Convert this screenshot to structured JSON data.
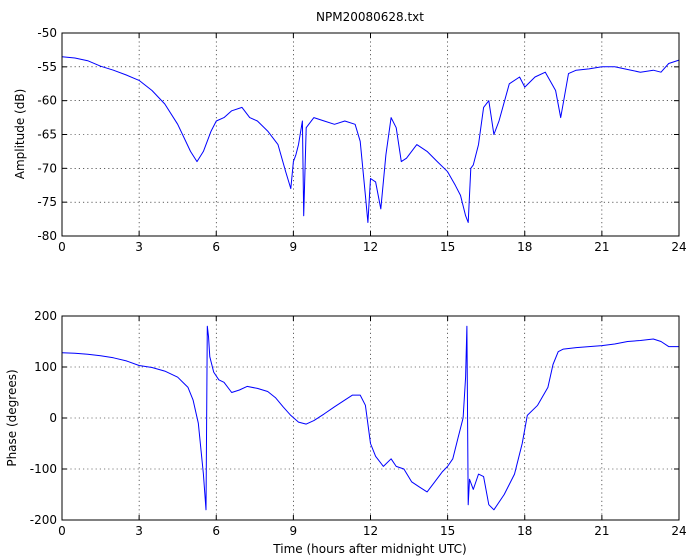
{
  "chart_data": [
    {
      "type": "line",
      "title": "NPM20080628.txt",
      "xlabel": "",
      "ylabel": "Amplitude (dB)",
      "xlim": [
        0,
        24
      ],
      "ylim": [
        -80,
        -50
      ],
      "xticks": [
        0,
        3,
        6,
        9,
        12,
        15,
        18,
        21,
        24
      ],
      "yticks": [
        -80,
        -75,
        -70,
        -65,
        -60,
        -55,
        -50
      ],
      "grid": true,
      "color": "#0000ff",
      "series": [
        {
          "x": [
            0,
            0.5,
            1,
            1.5,
            2,
            2.5,
            3,
            3.5,
            4,
            4.5,
            5,
            5.25,
            5.5,
            5.8,
            6,
            6.3,
            6.6,
            7,
            7.3,
            7.6,
            8,
            8.4,
            8.7,
            8.9,
            9.0,
            9.1,
            9.2,
            9.35,
            9.4,
            9.5,
            9.8,
            10.2,
            10.6,
            11,
            11.4,
            11.6,
            11.8,
            11.9,
            12.0,
            12.2,
            12.4,
            12.6,
            12.8,
            13.0,
            13.2,
            13.4,
            13.8,
            14.2,
            14.6,
            15.0,
            15.3,
            15.5,
            15.7,
            15.8,
            15.9,
            16.0,
            16.2,
            16.4,
            16.6,
            16.8,
            17.0,
            17.4,
            17.8,
            18.0,
            18.4,
            18.8,
            19.2,
            19.4,
            19.7,
            20.0,
            20.5,
            21,
            21.5,
            22,
            22.5,
            23,
            23.3,
            23.6,
            24
          ],
          "y": [
            -53.5,
            -53.7,
            -54.1,
            -54.9,
            -55.5,
            -56.2,
            -57.0,
            -58.5,
            -60.5,
            -63.5,
            -67.5,
            -69.0,
            -67.5,
            -64.5,
            -63.0,
            -62.5,
            -61.5,
            -61.0,
            -62.5,
            -63.0,
            -64.5,
            -66.5,
            -70.5,
            -73.0,
            -69.0,
            -68.0,
            -66.5,
            -63.0,
            -77.0,
            -64.0,
            -62.5,
            -63.0,
            -63.5,
            -63.0,
            -63.5,
            -66.0,
            -74.0,
            -78.0,
            -71.5,
            -72.0,
            -76.0,
            -68.0,
            -62.5,
            -64.0,
            -69.0,
            -68.5,
            -66.5,
            -67.5,
            -69.0,
            -70.5,
            -72.5,
            -74.0,
            -77.0,
            -78.0,
            -70.0,
            -69.5,
            -66.5,
            -61.0,
            -60.0,
            -65.0,
            -63.0,
            -57.5,
            -56.5,
            -58.0,
            -56.5,
            -55.8,
            -58.5,
            -62.5,
            -56.0,
            -55.5,
            -55.3,
            -55.0,
            -55.0,
            -55.4,
            -55.8,
            -55.5,
            -55.8,
            -54.5,
            -54.0
          ]
        }
      ]
    },
    {
      "type": "line",
      "title": "",
      "xlabel": "Time (hours after midnight UTC)",
      "ylabel": "Phase (degrees)",
      "xlim": [
        0,
        24
      ],
      "ylim": [
        -200,
        200
      ],
      "xticks": [
        0,
        3,
        6,
        9,
        12,
        15,
        18,
        21,
        24
      ],
      "yticks": [
        -200,
        -100,
        0,
        100,
        200
      ],
      "grid": true,
      "color": "#0000ff",
      "series": [
        {
          "x": [
            0,
            0.5,
            1,
            1.5,
            2,
            2.5,
            3,
            3.5,
            4,
            4.5,
            4.9,
            5.1,
            5.3,
            5.5,
            5.6,
            5.65,
            5.7,
            5.75,
            5.9,
            6.1,
            6.3,
            6.6,
            6.9,
            7.2,
            7.6,
            8.0,
            8.3,
            8.6,
            8.9,
            9.2,
            9.5,
            9.8,
            10.2,
            10.6,
            11,
            11.3,
            11.6,
            11.8,
            12.0,
            12.2,
            12.5,
            12.8,
            13.0,
            13.3,
            13.6,
            13.9,
            14.2,
            14.5,
            14.8,
            15.0,
            15.2,
            15.4,
            15.6,
            15.7,
            15.75,
            15.8,
            15.85,
            16.0,
            16.2,
            16.4,
            16.6,
            16.8,
            17.2,
            17.6,
            17.9,
            18.1,
            18.5,
            18.9,
            19.1,
            19.3,
            19.5,
            20,
            20.5,
            21,
            21.5,
            22,
            22.5,
            23,
            23.3,
            23.6,
            24
          ],
          "y": [
            128,
            127,
            125,
            122,
            118,
            112,
            103,
            99,
            92,
            80,
            60,
            35,
            -10,
            -110,
            -180,
            180,
            160,
            120,
            90,
            75,
            70,
            50,
            55,
            62,
            58,
            52,
            40,
            22,
            5,
            -8,
            -12,
            -5,
            8,
            22,
            35,
            45,
            45,
            25,
            -50,
            -75,
            -95,
            -80,
            -95,
            -100,
            -125,
            -135,
            -145,
            -125,
            -105,
            -95,
            -80,
            -40,
            0,
            80,
            180,
            -170,
            -120,
            -140,
            -110,
            -115,
            -170,
            -180,
            -150,
            -110,
            -50,
            5,
            25,
            60,
            105,
            130,
            135,
            138,
            140,
            142,
            145,
            150,
            152,
            155,
            150,
            140,
            140
          ]
        }
      ]
    }
  ]
}
